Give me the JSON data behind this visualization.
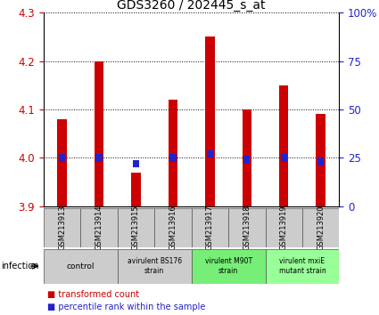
{
  "title": "GDS3260 / 202445_s_at",
  "samples": [
    "GSM213913",
    "GSM213914",
    "GSM213915",
    "GSM213916",
    "GSM213917",
    "GSM213918",
    "GSM213919",
    "GSM213920"
  ],
  "red_values": [
    4.08,
    4.2,
    3.97,
    4.12,
    4.25,
    4.1,
    4.15,
    4.09
  ],
  "blue_values": [
    25,
    25,
    22,
    25,
    27,
    24,
    25,
    23
  ],
  "ylim_left": [
    3.9,
    4.3
  ],
  "ylim_right": [
    0,
    100
  ],
  "yticks_left": [
    3.9,
    4.0,
    4.1,
    4.2,
    4.3
  ],
  "yticks_right": [
    0,
    25,
    50,
    75,
    100
  ],
  "ytick_labels_right": [
    "0",
    "25",
    "50",
    "75",
    "100%"
  ],
  "red_color": "#cc0000",
  "blue_color": "#2222cc",
  "group_spans": [
    {
      "start": 0,
      "end": 1,
      "label": "control",
      "color": "#cccccc"
    },
    {
      "start": 2,
      "end": 3,
      "label": "avirulent BS176\nstrain",
      "color": "#cccccc"
    },
    {
      "start": 4,
      "end": 5,
      "label": "virulent M90T\nstrain",
      "color": "#77ee77"
    },
    {
      "start": 6,
      "end": 7,
      "label": "virulent mxiE\nmutant strain",
      "color": "#99ff99"
    }
  ],
  "infection_label": "infection",
  "legend_red": "transformed count",
  "legend_blue": "percentile rank within the sample",
  "tick_area_bg": "#cccccc"
}
